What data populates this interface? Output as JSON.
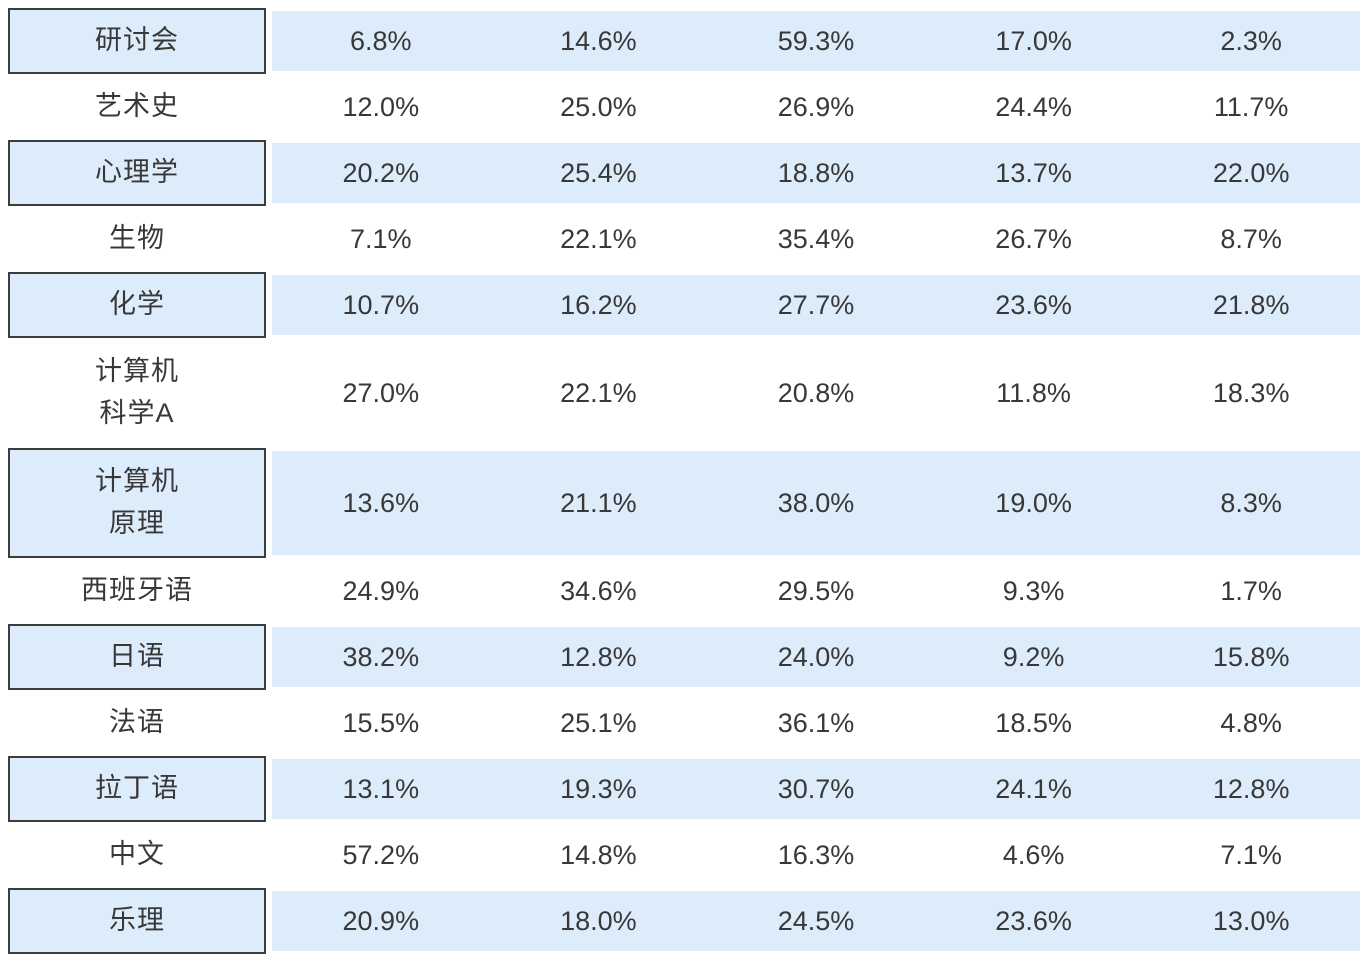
{
  "colors": {
    "row_highlight": "#ddecfa",
    "box_border": "#3d3d3d",
    "text": "#383838",
    "background": "#ffffff"
  },
  "chart_data": {
    "type": "table",
    "columns": 5,
    "column_headers": [],
    "layout": {
      "zebra_striping": true,
      "label_box_on_highlight_rows": true
    },
    "rows": [
      {
        "label": "研讨会",
        "label_lines": [
          "研讨会"
        ],
        "values": [
          "6.8%",
          "14.6%",
          "59.3%",
          "17.0%",
          "2.3%"
        ],
        "highlighted": true
      },
      {
        "label": "艺术史",
        "label_lines": [
          "艺术史"
        ],
        "values": [
          "12.0%",
          "25.0%",
          "26.9%",
          "24.4%",
          "11.7%"
        ],
        "highlighted": false
      },
      {
        "label": "心理学",
        "label_lines": [
          "心理学"
        ],
        "values": [
          "20.2%",
          "25.4%",
          "18.8%",
          "13.7%",
          "22.0%"
        ],
        "highlighted": true
      },
      {
        "label": "生物",
        "label_lines": [
          "生物"
        ],
        "values": [
          "7.1%",
          "22.1%",
          "35.4%",
          "26.7%",
          "8.7%"
        ],
        "highlighted": false
      },
      {
        "label": "化学",
        "label_lines": [
          "化学"
        ],
        "values": [
          "10.7%",
          "16.2%",
          "27.7%",
          "23.6%",
          "21.8%"
        ],
        "highlighted": true
      },
      {
        "label": "计算机科学A",
        "label_lines": [
          "计算机",
          "科学A"
        ],
        "values": [
          "27.0%",
          "22.1%",
          "20.8%",
          "11.8%",
          "18.3%"
        ],
        "highlighted": false
      },
      {
        "label": "计算机原理",
        "label_lines": [
          "计算机",
          "原理"
        ],
        "values": [
          "13.6%",
          "21.1%",
          "38.0%",
          "19.0%",
          "8.3%"
        ],
        "highlighted": true
      },
      {
        "label": "西班牙语",
        "label_lines": [
          "西班牙语"
        ],
        "values": [
          "24.9%",
          "34.6%",
          "29.5%",
          "9.3%",
          "1.7%"
        ],
        "highlighted": false
      },
      {
        "label": "日语",
        "label_lines": [
          "日语"
        ],
        "values": [
          "38.2%",
          "12.8%",
          "24.0%",
          "9.2%",
          "15.8%"
        ],
        "highlighted": true
      },
      {
        "label": "法语",
        "label_lines": [
          "法语"
        ],
        "values": [
          "15.5%",
          "25.1%",
          "36.1%",
          "18.5%",
          "4.8%"
        ],
        "highlighted": false
      },
      {
        "label": "拉丁语",
        "label_lines": [
          "拉丁语"
        ],
        "values": [
          "13.1%",
          "19.3%",
          "30.7%",
          "24.1%",
          "12.8%"
        ],
        "highlighted": true
      },
      {
        "label": "中文",
        "label_lines": [
          "中文"
        ],
        "values": [
          "57.2%",
          "14.8%",
          "16.3%",
          "4.6%",
          "7.1%"
        ],
        "highlighted": false
      },
      {
        "label": "乐理",
        "label_lines": [
          "乐理"
        ],
        "values": [
          "20.9%",
          "18.0%",
          "24.5%",
          "23.6%",
          "13.0%"
        ],
        "highlighted": true
      }
    ]
  }
}
